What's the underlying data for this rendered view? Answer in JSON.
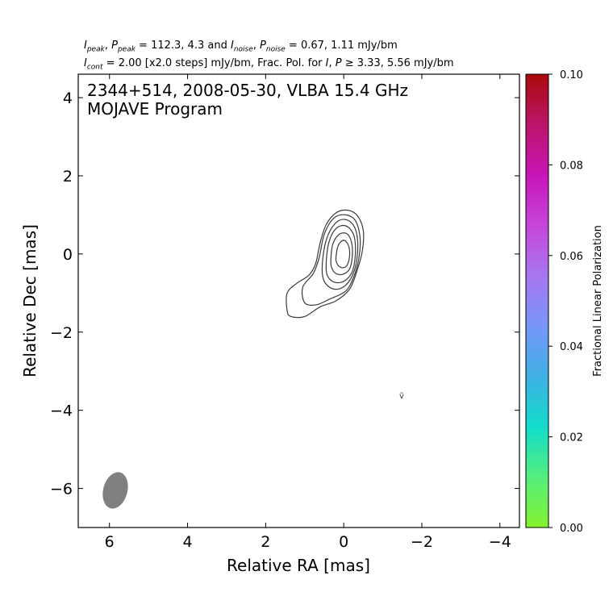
{
  "header": {
    "line1": {
      "sym_ipeak": "I",
      "sub_peak": "peak",
      "sep1": ", ",
      "sym_ppeak": "P",
      "sub_ppeak": "peak",
      "eq1": " = 112.3, 4.3 and ",
      "sym_inoise": "I",
      "sub_noise": "noise",
      "sep2": ", ",
      "sym_pnoise": "P",
      "sub_pnoise": "noise",
      "eq2": " = 0.67, 1.11 mJy/bm"
    },
    "line2": {
      "sym_icont": "I",
      "sub_cont": "cont",
      "text_a": " = 2.00 [x2.0 steps] mJy/bm, Frac. Pol. for ",
      "sym_i": "I",
      "sep": ", ",
      "sym_p": "P",
      "text_b": " ≥  3.33, 5.56 mJy/bm"
    }
  },
  "chart_data": {
    "type": "contour",
    "title": "2344+514, 2008-05-30, VLBA 15.4 GHz",
    "subtitle": "MOJAVE Program",
    "xlabel": "Relative RA [mas]",
    "ylabel": "Relative Dec [mas]",
    "xlim": [
      6.8,
      -4.5
    ],
    "ylim": [
      -7.0,
      4.6
    ],
    "xticks": [
      6,
      4,
      2,
      0,
      -2,
      -4
    ],
    "xtick_labels": [
      "6",
      "4",
      "2",
      "0",
      "−2",
      "−4"
    ],
    "yticks": [
      4,
      2,
      0,
      -2,
      -4,
      -6
    ],
    "ytick_labels": [
      "4",
      "2",
      "0",
      "−2",
      "−4",
      "−6"
    ],
    "contour_levels_mJy": [
      2,
      4,
      8,
      16,
      32,
      64
    ],
    "contours": [
      [
        [
          1.45,
          -1.45
        ],
        [
          1.45,
          -1.0
        ],
        [
          1.2,
          -0.75
        ],
        [
          0.9,
          -0.55
        ],
        [
          0.72,
          -0.25
        ],
        [
          0.6,
          0.3
        ],
        [
          0.45,
          0.75
        ],
        [
          0.2,
          1.05
        ],
        [
          -0.1,
          1.12
        ],
        [
          -0.35,
          0.98
        ],
        [
          -0.5,
          0.6
        ],
        [
          -0.48,
          0.1
        ],
        [
          -0.35,
          -0.4
        ],
        [
          -0.15,
          -0.9
        ],
        [
          0.2,
          -1.2
        ],
        [
          0.6,
          -1.35
        ],
        [
          1.0,
          -1.6
        ],
        [
          1.35,
          -1.6
        ]
      ],
      [
        [
          1.0,
          -1.25
        ],
        [
          1.05,
          -0.85
        ],
        [
          0.78,
          -0.5
        ],
        [
          0.63,
          -0.1
        ],
        [
          0.5,
          0.5
        ],
        [
          0.25,
          0.92
        ],
        [
          -0.05,
          1.0
        ],
        [
          -0.3,
          0.85
        ],
        [
          -0.42,
          0.4
        ],
        [
          -0.38,
          -0.15
        ],
        [
          -0.25,
          -0.6
        ],
        [
          -0.05,
          -0.95
        ],
        [
          0.35,
          -1.15
        ],
        [
          0.7,
          -1.3
        ]
      ],
      [
        [
          0.55,
          -0.3
        ],
        [
          0.45,
          0.35
        ],
        [
          0.22,
          0.78
        ],
        [
          -0.05,
          0.88
        ],
        [
          -0.28,
          0.68
        ],
        [
          -0.36,
          0.2
        ],
        [
          -0.28,
          -0.4
        ],
        [
          -0.05,
          -0.8
        ],
        [
          0.25,
          -0.9
        ],
        [
          0.5,
          -0.7
        ]
      ],
      [
        [
          0.45,
          -0.25
        ],
        [
          0.38,
          0.3
        ],
        [
          0.2,
          0.65
        ],
        [
          -0.05,
          0.72
        ],
        [
          -0.25,
          0.5
        ],
        [
          -0.3,
          0.05
        ],
        [
          -0.22,
          -0.45
        ],
        [
          0.0,
          -0.7
        ],
        [
          0.25,
          -0.72
        ],
        [
          0.42,
          -0.55
        ]
      ],
      [
        [
          0.33,
          -0.15
        ],
        [
          0.28,
          0.25
        ],
        [
          0.12,
          0.5
        ],
        [
          -0.08,
          0.52
        ],
        [
          -0.2,
          0.3
        ],
        [
          -0.22,
          -0.05
        ],
        [
          -0.15,
          -0.38
        ],
        [
          0.02,
          -0.52
        ],
        [
          0.2,
          -0.5
        ],
        [
          0.31,
          -0.35
        ]
      ],
      [
        [
          0.2,
          -0.1
        ],
        [
          0.14,
          0.22
        ],
        [
          0.0,
          0.35
        ],
        [
          -0.12,
          0.22
        ],
        [
          -0.15,
          -0.05
        ],
        [
          -0.08,
          -0.3
        ],
        [
          0.06,
          -0.35
        ],
        [
          0.17,
          -0.25
        ]
      ]
    ],
    "beam": {
      "x": 5.85,
      "y": -6.05,
      "major_mas": 0.95,
      "minor_mas": 0.62,
      "pa_deg": -15
    },
    "colorbar": {
      "label": "Fractional Linear Polarization",
      "min": 0.0,
      "max": 0.1,
      "ticks": [
        0.0,
        0.02,
        0.04,
        0.06,
        0.08,
        0.1
      ],
      "tick_labels": [
        "0.00",
        "0.02",
        "0.04",
        "0.06",
        "0.08",
        "0.10"
      ],
      "colors": [
        "#84f22e",
        "#54ee7e",
        "#12dcca",
        "#3fb0e4",
        "#7796f8",
        "#a876f0",
        "#c546d8",
        "#c815b7",
        "#bb156a",
        "#aa0a0a"
      ]
    },
    "grid": false,
    "legend": "none"
  }
}
